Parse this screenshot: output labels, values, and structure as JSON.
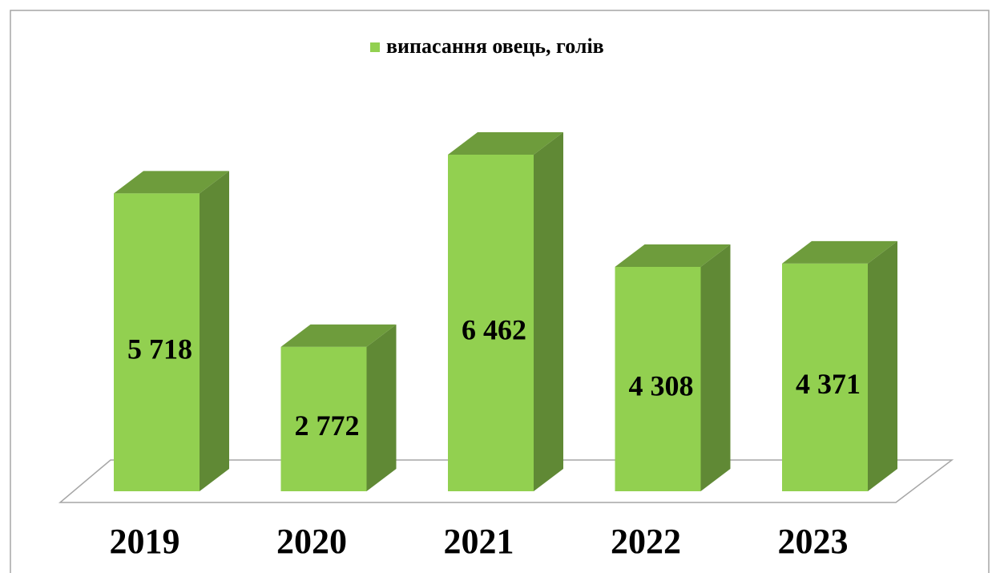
{
  "chart_data": {
    "type": "bar3d",
    "categories": [
      "2019",
      "2020",
      "2021",
      "2022",
      "2023"
    ],
    "series": [
      {
        "name": "випасання овець, голів",
        "color": "#92d050",
        "values": [
          5718,
          2772,
          6462,
          4308,
          4371
        ],
        "value_labels": [
          "5 718",
          "2 772",
          "6 462",
          "4 308",
          "4 371"
        ]
      }
    ]
  }
}
